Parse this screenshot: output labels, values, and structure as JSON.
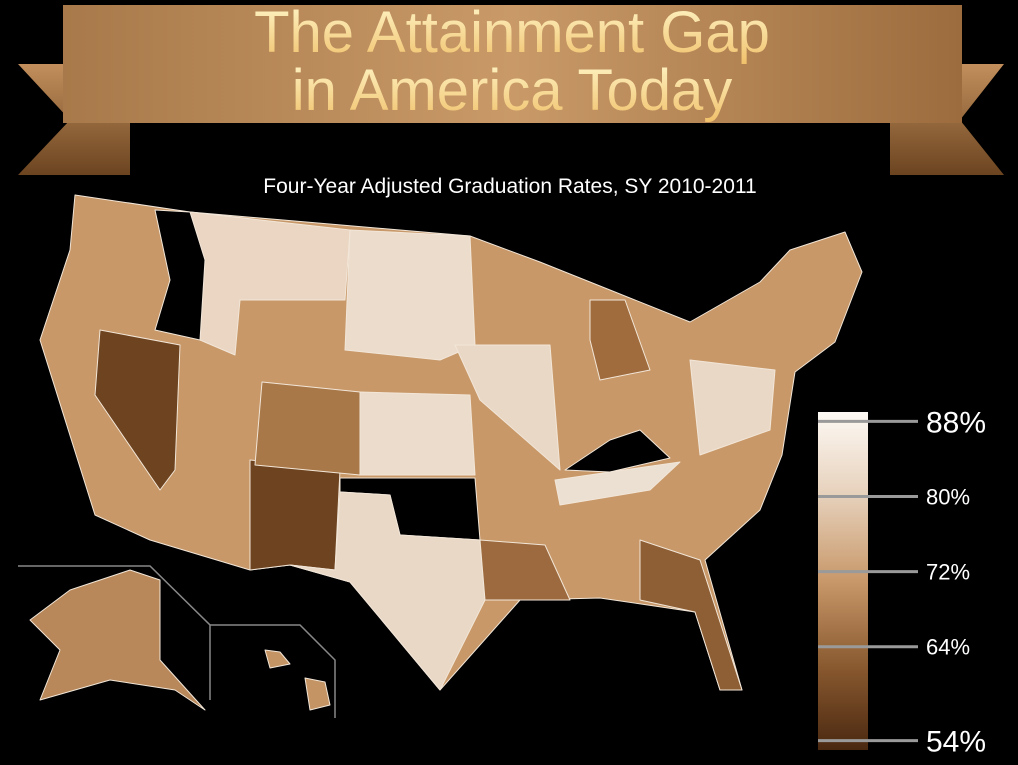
{
  "header": {
    "title": [
      "The Attainment Gap",
      "in America Today"
    ],
    "subtitle": "Four-Year Adjusted Graduation Rates, SY 2010-2011"
  },
  "legend": {
    "range": [
      53,
      89
    ],
    "ticks": [
      {
        "value": 88,
        "label": "88%"
      },
      {
        "value": 80,
        "label": "80%"
      },
      {
        "value": 72,
        "label": "72%"
      },
      {
        "value": 64,
        "label": "64%"
      },
      {
        "value": 54,
        "label": "54%"
      }
    ],
    "colors": [
      "#4a2810",
      "#8a5a30",
      "#c8986a",
      "#e6d0ba",
      "#fdf9f4"
    ]
  }
}
